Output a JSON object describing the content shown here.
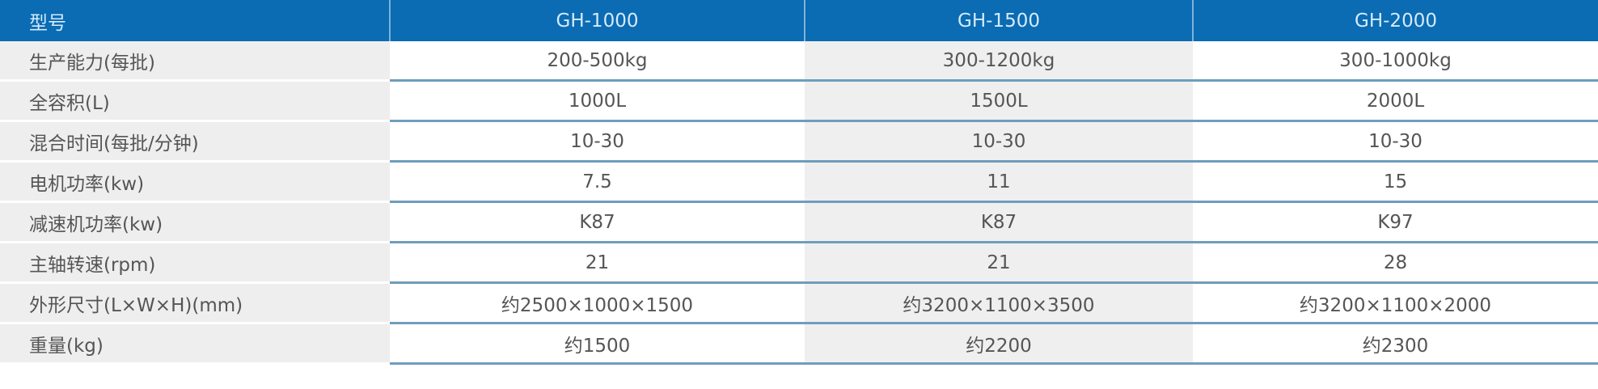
{
  "header": {
    "label": "型号",
    "models": [
      "GH-1000",
      "GH-1500",
      "GH-2000"
    ]
  },
  "colors": {
    "header_bg": "#0b6bb3",
    "row_divider": "#6f9dbd"
  },
  "rows": [
    {
      "label": "生产能力(每批)",
      "values": [
        "200-500kg",
        "300-1200kg",
        "300-1000kg"
      ]
    },
    {
      "label": "全容积(L)",
      "values": [
        "1000L",
        "1500L",
        "2000L"
      ]
    },
    {
      "label": "混合时间(每批/分钟)",
      "values": [
        "10-30",
        "10-30",
        "10-30"
      ]
    },
    {
      "label": "电机功率(kw)",
      "values": [
        "7.5",
        "11",
        "15"
      ]
    },
    {
      "label": "减速机功率(kw)",
      "values": [
        "K87",
        "K87",
        "K97"
      ]
    },
    {
      "label": "主轴转速(rpm)",
      "values": [
        "21",
        "21",
        "28"
      ]
    },
    {
      "label": "外形尺寸(L×W×H)(mm)",
      "values": [
        "约2500×1000×1500",
        "约3200×1100×3500",
        "约3200×1100×2000"
      ]
    },
    {
      "label": "重量(kg)",
      "values": [
        "约1500",
        "约2200",
        "约2300"
      ]
    }
  ]
}
